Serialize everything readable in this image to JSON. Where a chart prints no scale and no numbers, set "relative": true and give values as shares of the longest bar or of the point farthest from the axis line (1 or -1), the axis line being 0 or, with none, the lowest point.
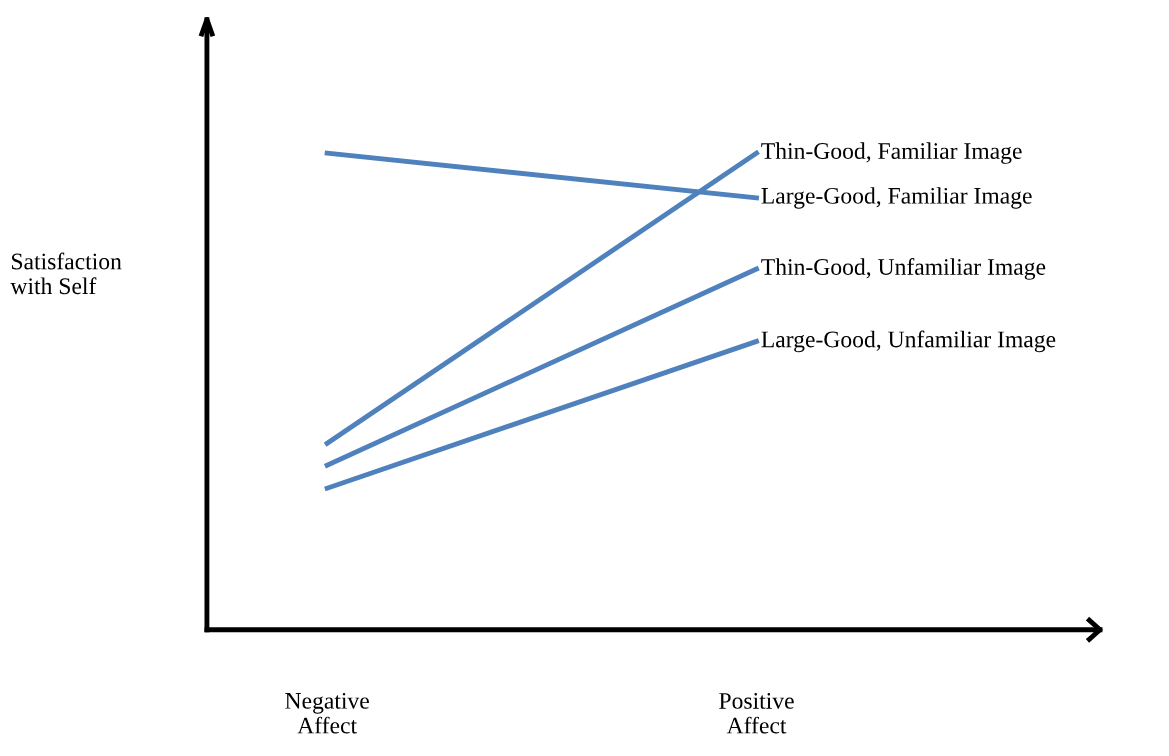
{
  "chart_data": {
    "type": "line",
    "relative": true,
    "ylabel": "Satisfaction\nwith Self",
    "categories": [
      "Negative\nAffect",
      "Positive\nAffect"
    ],
    "legend": false,
    "grid": false,
    "series": [
      {
        "name": "Thin-Good, Familiar Image",
        "color": "#4f81bd",
        "values": [
          0.391,
          1
        ]
      },
      {
        "name": "Large-Good, Familiar Image",
        "color": "#4f81bd",
        "values": [
          1,
          0.906
        ]
      },
      {
        "name": "Thin-Good, Unfamiliar Image",
        "color": "#4f81bd",
        "values": [
          0.345,
          0.757
        ]
      },
      {
        "name": "Large-Good, Unfamiliar Image",
        "color": "#4f81bd",
        "values": [
          0.297,
          0.605
        ]
      }
    ]
  }
}
